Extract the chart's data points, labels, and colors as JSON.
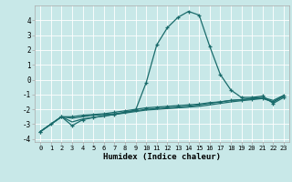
{
  "xlabel": "Humidex (Indice chaleur)",
  "xlim": [
    -0.5,
    23.5
  ],
  "ylim": [
    -4.2,
    5.0
  ],
  "xticks": [
    0,
    1,
    2,
    3,
    4,
    5,
    6,
    7,
    8,
    9,
    10,
    11,
    12,
    13,
    14,
    15,
    16,
    17,
    18,
    19,
    20,
    21,
    22,
    23
  ],
  "yticks": [
    -4,
    -3,
    -2,
    -1,
    0,
    1,
    2,
    3,
    4
  ],
  "bg_color": "#c8e8e8",
  "line_color": "#1a6b6b",
  "line1_x": [
    0,
    1,
    2,
    3,
    4,
    5,
    6,
    7,
    8,
    9,
    10,
    11,
    12,
    13,
    14,
    15,
    16,
    17,
    18,
    19,
    20,
    21,
    22,
    23
  ],
  "line1_y": [
    -3.5,
    -3.0,
    -2.5,
    -3.1,
    -2.7,
    -2.55,
    -2.45,
    -2.35,
    -2.2,
    -2.05,
    -0.2,
    2.35,
    3.5,
    4.2,
    4.6,
    4.35,
    2.25,
    0.35,
    -0.7,
    -1.2,
    -1.2,
    -1.1,
    -1.6,
    -1.2
  ],
  "line2_x": [
    0,
    2,
    3,
    4,
    5,
    6,
    7,
    8,
    9,
    10,
    11,
    12,
    13,
    14,
    15,
    16,
    17,
    18,
    19,
    20,
    21,
    22,
    23
  ],
  "line2_y": [
    -3.5,
    -2.5,
    -2.5,
    -2.4,
    -2.35,
    -2.3,
    -2.2,
    -2.1,
    -2.0,
    -1.9,
    -1.85,
    -1.8,
    -1.75,
    -1.7,
    -1.65,
    -1.55,
    -1.5,
    -1.4,
    -1.35,
    -1.3,
    -1.25,
    -1.5,
    -1.1
  ],
  "line3_x": [
    0,
    2,
    3,
    4,
    5,
    6,
    7,
    8,
    9,
    10,
    11,
    12,
    13,
    14,
    15,
    16,
    17,
    18,
    19,
    20,
    21,
    22,
    23
  ],
  "line3_y": [
    -3.5,
    -2.5,
    -2.6,
    -2.5,
    -2.4,
    -2.35,
    -2.3,
    -2.2,
    -2.1,
    -2.0,
    -1.95,
    -1.9,
    -1.85,
    -1.8,
    -1.7,
    -1.6,
    -1.5,
    -1.4,
    -1.35,
    -1.25,
    -1.2,
    -1.4,
    -1.05
  ],
  "line4_x": [
    0,
    2,
    3,
    4,
    5,
    6,
    7,
    8,
    9,
    10,
    11,
    12,
    13,
    14,
    15,
    16,
    17,
    18,
    19,
    20,
    21,
    22,
    23
  ],
  "line4_y": [
    -3.5,
    -2.5,
    -2.85,
    -2.65,
    -2.55,
    -2.45,
    -2.35,
    -2.25,
    -2.15,
    -2.05,
    -2.0,
    -1.95,
    -1.9,
    -1.85,
    -1.8,
    -1.7,
    -1.6,
    -1.5,
    -1.42,
    -1.35,
    -1.27,
    -1.5,
    -1.1
  ]
}
